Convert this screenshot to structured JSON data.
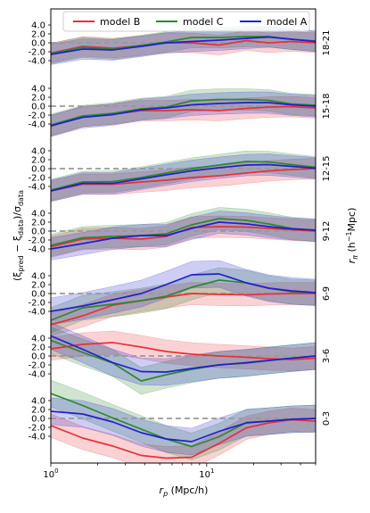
{
  "chart_data": {
    "type": "line",
    "xscale": "log",
    "xlim": [
      1,
      50
    ],
    "xticks": [
      {
        "value": 1,
        "base": "10",
        "exp": "0"
      },
      {
        "value": 10,
        "base": "10",
        "exp": "1"
      }
    ],
    "xlabel_main": "r",
    "xlabel_sub": "p",
    "xlabel_rest": " (Mpc/h)",
    "ylabel": "(ξ_pred − ξ_data)/σ_data",
    "ylabel_parts": {
      "open": "(ξ",
      "pred": "pred",
      "minus": " − ξ",
      "data1": "data",
      "close": ")/σ",
      "data2": "data"
    },
    "right_label": "r_π (h⁻¹Mpc)",
    "right_label_parts": {
      "r": "r",
      "pi": "π",
      "open": " (h",
      "exp": "−1",
      "close": "Mpc)"
    },
    "ytick_labels": [
      "4.0",
      "2.0",
      "0.0",
      "-2.0",
      "-4.0"
    ],
    "ytick_values": [
      4,
      2,
      0,
      -2,
      -4
    ],
    "grid": false,
    "legend_position": "top",
    "colors": {
      "model B": "#e8303a",
      "model C": "#2a8a2a",
      "model A": "#2020d0",
      "ref": "#999999"
    },
    "x": [
      1.0,
      1.6,
      2.5,
      3.8,
      5.5,
      8.0,
      12.0,
      18.0,
      25.0,
      35.0,
      50.0
    ],
    "panels": [
      {
        "label": "18-21",
        "series": [
          {
            "name": "model B",
            "values": [
              -2.3,
              -0.8,
              -1.2,
              -0.6,
              0.0,
              0.0,
              -0.5,
              0.5,
              0.0,
              0.3,
              0.0
            ],
            "band": 2.2
          },
          {
            "name": "model C",
            "values": [
              -2.4,
              -1.0,
              -1.4,
              -0.6,
              0.2,
              1.2,
              1.2,
              1.4,
              1.4,
              0.8,
              0.4
            ],
            "band": 2.3
          },
          {
            "name": "model A",
            "values": [
              -2.6,
              -1.4,
              -1.6,
              -0.8,
              0.0,
              0.3,
              0.6,
              1.0,
              1.3,
              0.8,
              0.3
            ],
            "band": 2.3
          }
        ]
      },
      {
        "label": "15-18",
        "series": [
          {
            "name": "model B",
            "values": [
              -4.5,
              -2.3,
              -1.8,
              -1.0,
              -1.0,
              -0.8,
              -1.0,
              -0.5,
              -0.2,
              -0.1,
              -0.4
            ],
            "band": 2.3
          },
          {
            "name": "model C",
            "values": [
              -4.2,
              -2.2,
              -1.6,
              -0.6,
              -0.2,
              1.2,
              1.5,
              1.5,
              1.3,
              0.5,
              0.2
            ],
            "band": 2.4
          },
          {
            "name": "model A",
            "values": [
              -4.4,
              -2.5,
              -1.9,
              -0.8,
              -0.4,
              0.3,
              0.6,
              0.8,
              0.8,
              0.3,
              0.0
            ],
            "band": 2.4
          }
        ]
      },
      {
        "label": "12-15",
        "series": [
          {
            "name": "model B",
            "values": [
              -5.0,
              -3.5,
              -3.5,
              -3.0,
              -2.6,
              -2.0,
              -1.6,
              -1.0,
              -0.5,
              -0.2,
              0.0
            ],
            "band": 2.3
          },
          {
            "name": "model C",
            "values": [
              -4.8,
              -3.0,
              -2.9,
              -2.0,
              -1.0,
              0.0,
              0.8,
              1.6,
              1.5,
              0.9,
              0.3
            ],
            "band": 2.4
          },
          {
            "name": "model A",
            "values": [
              -5.0,
              -3.3,
              -3.3,
              -2.3,
              -1.4,
              -0.5,
              0.2,
              0.8,
              0.9,
              0.5,
              0.1
            ],
            "band": 2.4
          }
        ]
      },
      {
        "label": "9-12",
        "series": [
          {
            "name": "model B",
            "values": [
              -3.5,
              -1.8,
              -1.6,
              -1.8,
              -1.2,
              0.8,
              1.0,
              0.9,
              0.6,
              0.3,
              0.0
            ],
            "band": 2.4
          },
          {
            "name": "model C",
            "values": [
              -3.2,
              -1.5,
              -1.2,
              -1.0,
              -0.6,
              1.4,
              2.8,
              2.4,
              1.6,
              0.6,
              0.2
            ],
            "band": 2.5
          },
          {
            "name": "model A",
            "values": [
              -4.0,
              -2.8,
              -1.6,
              -1.0,
              -1.0,
              0.6,
              2.0,
              1.6,
              1.0,
              0.5,
              0.2
            ],
            "band": 2.5
          }
        ]
      },
      {
        "label": "6-9",
        "series": [
          {
            "name": "model B",
            "values": [
              -7.0,
              -5.0,
              -2.6,
              -1.6,
              -0.8,
              0.0,
              -0.2,
              -0.3,
              -0.1,
              0.0,
              0.0
            ],
            "band": 2.5
          },
          {
            "name": "model C",
            "values": [
              -6.0,
              -3.2,
              -2.4,
              -1.6,
              -0.6,
              1.4,
              3.0,
              2.4,
              1.2,
              0.4,
              0.2
            ],
            "band": 2.8
          },
          {
            "name": "model A",
            "values": [
              -4.0,
              -2.8,
              -1.4,
              0.0,
              2.0,
              4.2,
              4.4,
              2.4,
              1.2,
              0.6,
              0.2
            ],
            "band": 3.0
          }
        ]
      },
      {
        "label": "3-6",
        "series": [
          {
            "name": "model B",
            "values": [
              1.6,
              2.6,
              3.0,
              2.0,
              1.0,
              0.4,
              0.0,
              -0.3,
              -0.6,
              -0.8,
              -0.5
            ],
            "band": 2.6
          },
          {
            "name": "model C",
            "values": [
              3.5,
              0.8,
              -1.6,
              -5.6,
              -4.2,
              -3.0,
              -2.0,
              -1.6,
              -1.0,
              -0.5,
              0.0
            ],
            "band": 3.0
          },
          {
            "name": "model A",
            "values": [
              4.5,
              1.5,
              -1.5,
              -3.5,
              -3.6,
              -2.8,
              -2.0,
              -1.5,
              -1.0,
              -0.5,
              0.0
            ],
            "band": 3.0
          }
        ]
      },
      {
        "label": "0-3",
        "series": [
          {
            "name": "model B",
            "values": [
              -1.6,
              -4.4,
              -6.2,
              -8.3,
              -8.9,
              -8.7,
              -5.6,
              -2.1,
              -1.0,
              -0.3,
              -0.6
            ],
            "band": 2.6
          },
          {
            "name": "model C",
            "values": [
              5.6,
              2.9,
              0.1,
              -2.4,
              -4.6,
              -6.3,
              -4.1,
              -0.9,
              -0.6,
              -0.2,
              0.0
            ],
            "band": 3.0
          },
          {
            "name": "model A",
            "values": [
              1.6,
              1.0,
              -0.8,
              -3.2,
              -4.6,
              -5.2,
              -2.9,
              -1.0,
              -0.6,
              -0.2,
              0.0
            ],
            "band": 3.0
          }
        ]
      }
    ]
  }
}
